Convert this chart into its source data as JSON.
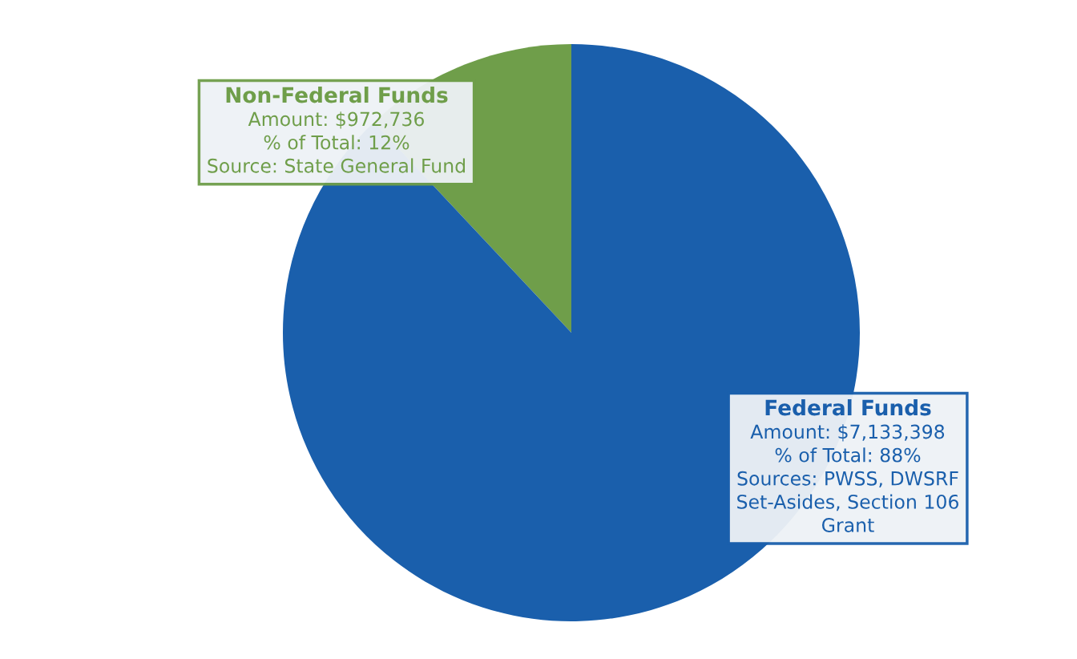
{
  "chart_data": {
    "type": "pie",
    "categories": [
      "Non-Federal Funds",
      "Federal Funds"
    ],
    "values": [
      972736,
      7133398
    ],
    "colors": [
      "#6f9e4a",
      "#1a5fac"
    ],
    "value_labels": [
      "Amount: $972,736\n% of Total: 12%\nSource: State General Fund",
      "Amount: $7,133,398\n% of Total: 88%\nSources: PWSS, DWSRF\nSet-Asides, Section 106\nGrant"
    ],
    "legend": false
  }
}
